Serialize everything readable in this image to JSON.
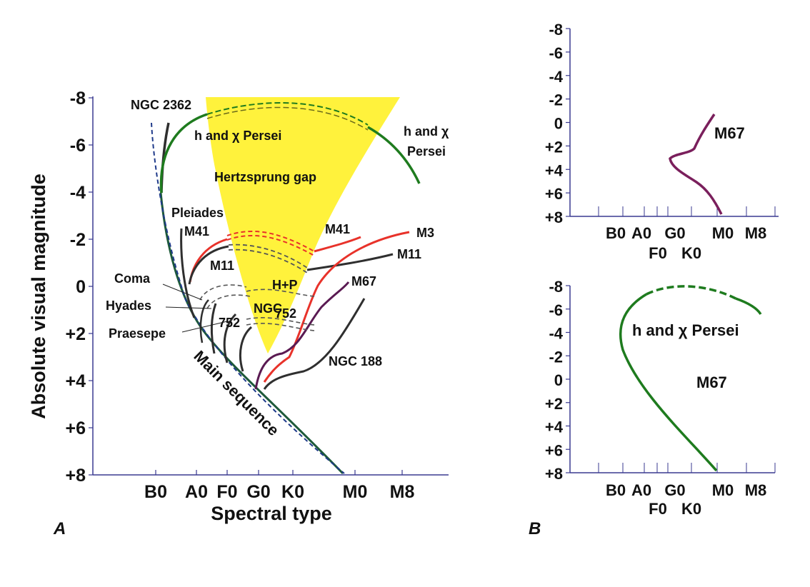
{
  "chart_data": [
    {
      "panel": "A",
      "type": "line",
      "xlabel": "Spectral type",
      "ylabel": "Absolute visual magnitude",
      "ylim": [
        -8,
        8
      ],
      "y_ticks": [
        "-8",
        "-6",
        "-4",
        "-2",
        "0",
        "+2",
        "+4",
        "+6",
        "+8"
      ],
      "x_ticks": [
        "B0",
        "A0",
        "F0",
        "G0",
        "K0",
        "M0",
        "M8"
      ],
      "annotations": [
        "Hertzsprung gap",
        "Main sequence",
        "H+P"
      ],
      "series": [
        {
          "name": "NGC 2362",
          "color": "#2f2f2f"
        },
        {
          "name": "h and χ Persei",
          "color": "#1e7b1e"
        },
        {
          "name": "Pleiades",
          "color": "#2f2f2f"
        },
        {
          "name": "M41",
          "color": "#e8322a"
        },
        {
          "name": "M11",
          "color": "#2f2f2f"
        },
        {
          "name": "M3",
          "color": "#e8322a"
        },
        {
          "name": "M67",
          "color": "#5a1a52"
        },
        {
          "name": "Coma",
          "color": "#2f2f2f"
        },
        {
          "name": "Hyades",
          "color": "#2f2f2f"
        },
        {
          "name": "Praesepe",
          "color": "#2f2f2f"
        },
        {
          "name": "NGC 752",
          "color": "#2f2f2f"
        },
        {
          "name": "NGC 188",
          "color": "#2f2f2f"
        }
      ],
      "labels": {
        "ngc2362": "NGC 2362",
        "hchi_inner": "h and χ Persei",
        "hchi_outer_1": "h and χ",
        "hchi_outer_2": "Persei",
        "gap": "Hertzsprung gap",
        "pleiades": "Pleiades",
        "m41_left": "M41",
        "m41_right": "M41",
        "m3": "M3",
        "m11_left": "M11",
        "m11_right": "M11",
        "coma": "Coma",
        "hyades": "Hyades",
        "praesepe": "Praesepe",
        "hp": "H+P",
        "m67": "M67",
        "ngc": "NGC",
        "n752a": "752",
        "n752b": "752",
        "ngc188": "NGC 188",
        "main_seq": "Main sequence"
      },
      "colors": {
        "gap_fill": "#fff23c",
        "main_sequence_dash": "#1f3a8a",
        "axis": "#3a3a90"
      }
    },
    {
      "panel": "B-top",
      "type": "line",
      "ylim": [
        -8,
        8
      ],
      "y_ticks": [
        "-8",
        "-6",
        "-4",
        "-2",
        "0",
        "+2",
        "+4",
        "+6",
        "+8"
      ],
      "x_ticks_row1": [
        "B0",
        "A0",
        "G0",
        "M0",
        "M8"
      ],
      "x_ticks_row2": [
        "F0",
        "K0"
      ],
      "series": [
        {
          "name": "M67",
          "color": "#7a1f5c"
        }
      ],
      "labels": {
        "m67": "M67"
      }
    },
    {
      "panel": "B-bottom",
      "type": "line",
      "ylim": [
        -8,
        8
      ],
      "y_ticks": [
        "-8",
        "-6",
        "-4",
        "-2",
        "0",
        "+2",
        "+4",
        "+6",
        "+8"
      ],
      "x_ticks_row1": [
        "B0",
        "A0",
        "G0",
        "M0",
        "M8"
      ],
      "x_ticks_row2": [
        "F0",
        "K0"
      ],
      "series": [
        {
          "name": "h and χ Persei",
          "color": "#1e7b1e"
        }
      ],
      "labels": {
        "hchi": "h and χ Persei",
        "m67": "M67"
      }
    }
  ],
  "panel_labels": {
    "a": "A",
    "b": "B"
  }
}
